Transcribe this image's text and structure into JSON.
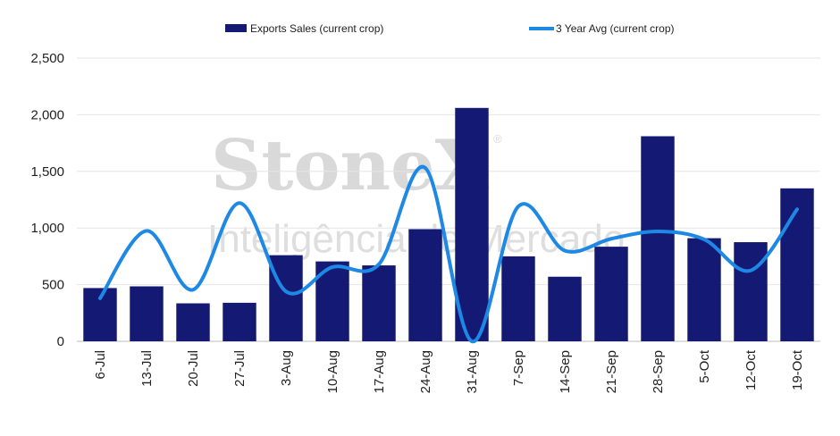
{
  "chart_data": {
    "type": "bar",
    "categories": [
      "6-Jul",
      "13-Jul",
      "20-Jul",
      "27-Jul",
      "3-Aug",
      "10-Aug",
      "17-Aug",
      "24-Aug",
      "31-Aug",
      "7-Sep",
      "14-Sep",
      "21-Sep",
      "28-Sep",
      "5-Oct",
      "12-Oct",
      "19-Oct"
    ],
    "series": [
      {
        "name": "Exports Sales (current crop)",
        "type": "bar",
        "color": "#141a73",
        "values": [
          470,
          485,
          335,
          340,
          760,
          705,
          670,
          990,
          2060,
          750,
          570,
          835,
          1810,
          910,
          875,
          1350
        ]
      },
      {
        "name": "3 Year Avg (current crop)",
        "type": "line",
        "color": "#1e88e5",
        "values": [
          380,
          975,
          455,
          1220,
          440,
          655,
          680,
          1530,
          0,
          1190,
          800,
          905,
          970,
          900,
          625,
          1165
        ]
      }
    ],
    "ylim": [
      0,
      2500
    ],
    "yticks": [
      "0",
      "500",
      "1,000",
      "1,500",
      "2,000",
      "2,500"
    ],
    "grid": true,
    "legend": "top"
  },
  "watermark": {
    "brand": "StoneX",
    "registered": "®",
    "subtitle": "Inteligência de Mercado"
  }
}
